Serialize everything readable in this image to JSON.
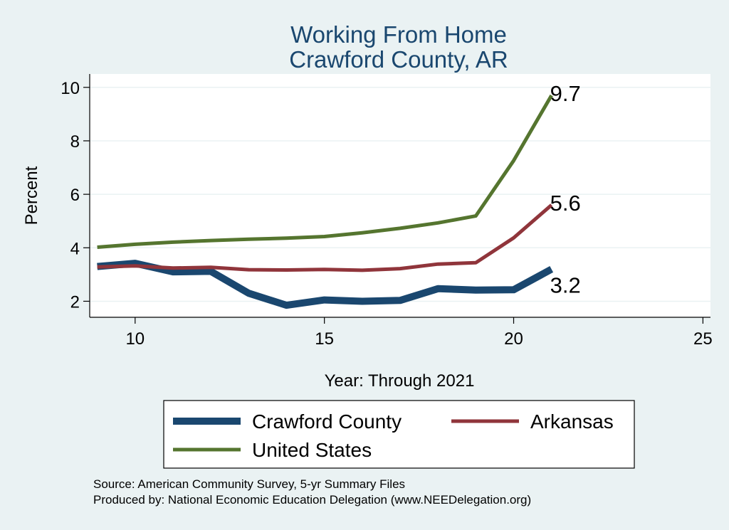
{
  "chart_data": {
    "type": "line",
    "title": [
      "Working From Home",
      "Crawford County, AR"
    ],
    "xlabel": "Year: Through 2021",
    "ylabel": "Percent",
    "xlim": [
      8.8,
      25.2
    ],
    "ylim": [
      1.4,
      10.5
    ],
    "xticks": [
      10,
      15,
      20,
      25
    ],
    "yticks": [
      2,
      4,
      6,
      8,
      10
    ],
    "grid": true,
    "legend_position": "bottom",
    "series": [
      {
        "name": "Crawford County",
        "color": "#1A476F",
        "x": [
          9,
          10,
          11,
          12,
          13,
          14,
          15,
          16,
          17,
          18,
          19,
          20,
          21
        ],
        "y": [
          3.3,
          3.42,
          3.1,
          3.12,
          2.3,
          1.85,
          2.05,
          2.0,
          2.03,
          2.47,
          2.42,
          2.43,
          3.2
        ],
        "end_label": "3.2"
      },
      {
        "name": "Arkansas",
        "color": "#90353B",
        "x": [
          9,
          10,
          11,
          12,
          13,
          14,
          15,
          16,
          17,
          18,
          19,
          20,
          21
        ],
        "y": [
          3.28,
          3.32,
          3.24,
          3.27,
          3.18,
          3.17,
          3.19,
          3.16,
          3.22,
          3.39,
          3.44,
          4.37,
          5.6
        ],
        "end_label": "5.6"
      },
      {
        "name": "United States",
        "color": "#55752F",
        "x": [
          9,
          10,
          11,
          12,
          13,
          14,
          15,
          16,
          17,
          18,
          19,
          20,
          21
        ],
        "y": [
          4.02,
          4.13,
          4.21,
          4.27,
          4.32,
          4.36,
          4.42,
          4.56,
          4.73,
          4.93,
          5.19,
          7.26,
          9.7
        ],
        "end_label": "9.7"
      }
    ],
    "notes": [
      "Source: American Community Survey, 5-yr Summary Files",
      "Produced by: National Economic Education Delegation (www.NEEDelegation.org)"
    ]
  }
}
